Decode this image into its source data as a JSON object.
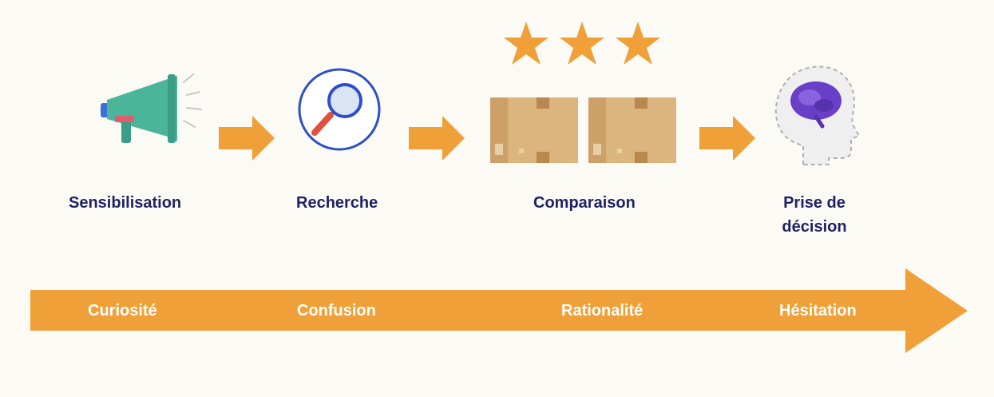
{
  "stages": [
    {
      "label": "Sensibilisation",
      "icon": "megaphone-icon"
    },
    {
      "label": "Recherche",
      "icon": "magnifier-icon"
    },
    {
      "label": "Comparaison",
      "icon": "boxes-with-stars-icon"
    },
    {
      "label_line1": "Prise de",
      "label_line2": "décision",
      "icon": "brain-head-icon"
    }
  ],
  "emotions": [
    "Curiosité",
    "Confusion",
    "Rationalité",
    "Hésitation"
  ],
  "rating": {
    "stars": 3,
    "max": 3
  },
  "colors": {
    "background": "#fcfaf5",
    "accent_orange": "#f0a038",
    "label_navy": "#1f2366",
    "megaphone_teal": "#4bb59a",
    "lens_blue": "#2e4fc9",
    "box_tan": "#d9b27b",
    "brain_purple": "#6a3fc8"
  }
}
